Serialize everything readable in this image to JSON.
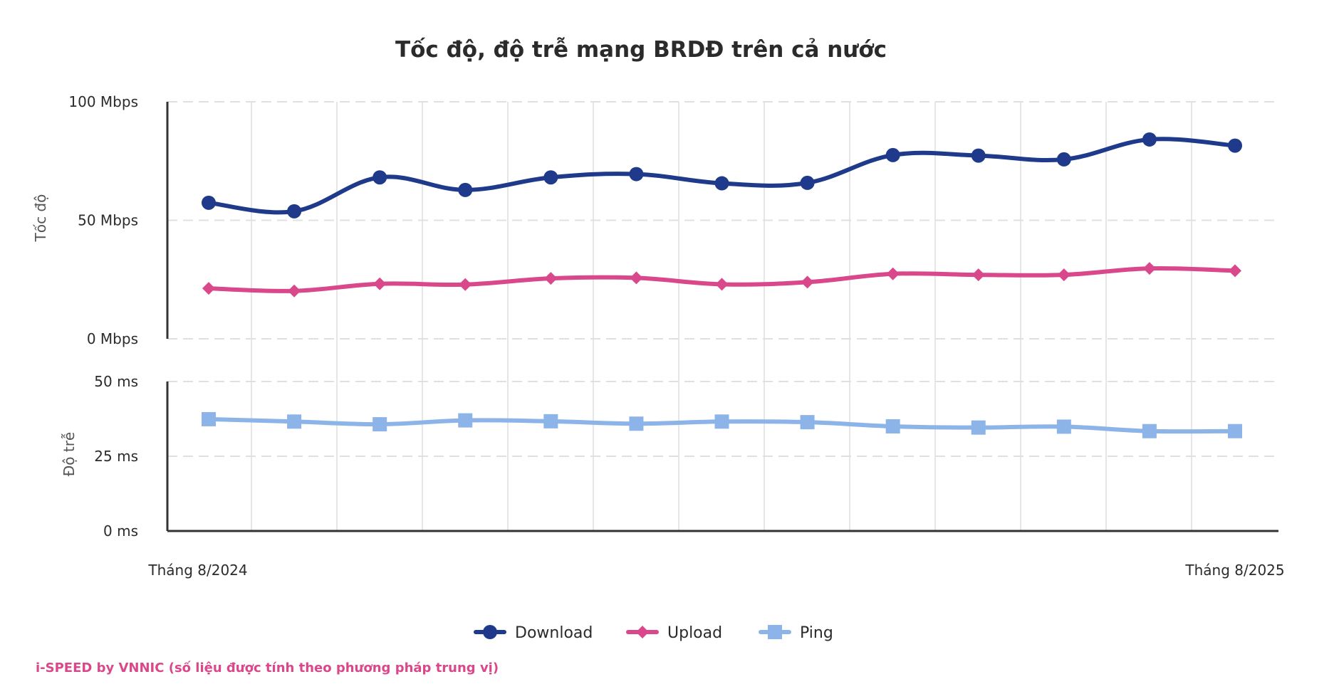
{
  "chart_data": {
    "type": "line",
    "title": "Tốc độ, độ trễ mạng BRDĐ trên cả nước",
    "x_start_label": "Tháng 8/2024",
    "x_end_label": "Tháng 8/2025",
    "legend_position": "bottom",
    "grid": true,
    "panels": [
      {
        "ylabel": "Tốc độ",
        "ylim": [
          0,
          100
        ],
        "ytick_labels": [
          "100 Mbps",
          "50 Mbps",
          "0 Mbps"
        ],
        "ytick_values": [
          100,
          50,
          0
        ],
        "series": [
          {
            "name": "Download",
            "color": "#1f3a8a",
            "marker": "circle",
            "values": [
              57.4,
              53.8,
              68.1,
              62.8,
              68.1,
              69.5,
              65.6,
              65.8,
              77.5,
              77.3,
              75.7,
              84.1,
              81.5
            ]
          },
          {
            "name": "Upload",
            "color": "#d9488b",
            "marker": "diamond",
            "values": [
              21.3,
              20.2,
              23.2,
              22.9,
              25.5,
              25.7,
              23.0,
              23.9,
              27.4,
              27.0,
              27.0,
              29.7,
              28.7
            ]
          }
        ]
      },
      {
        "ylabel": "Độ trễ",
        "ylim": [
          0,
          50
        ],
        "ytick_labels": [
          "50 ms",
          "25 ms",
          "0 ms"
        ],
        "ytick_values": [
          50,
          25,
          0
        ],
        "series": [
          {
            "name": "Ping",
            "color": "#8db4e8",
            "marker": "square",
            "values": [
              37.4,
              36.6,
              35.7,
              37.0,
              36.7,
              35.9,
              36.6,
              36.4,
              35.0,
              34.6,
              34.9,
              33.4,
              33.4
            ]
          }
        ]
      }
    ]
  },
  "footer": {
    "credit": "i-SPEED by VNNIC (số liệu được tính theo phương pháp trung vị)"
  }
}
